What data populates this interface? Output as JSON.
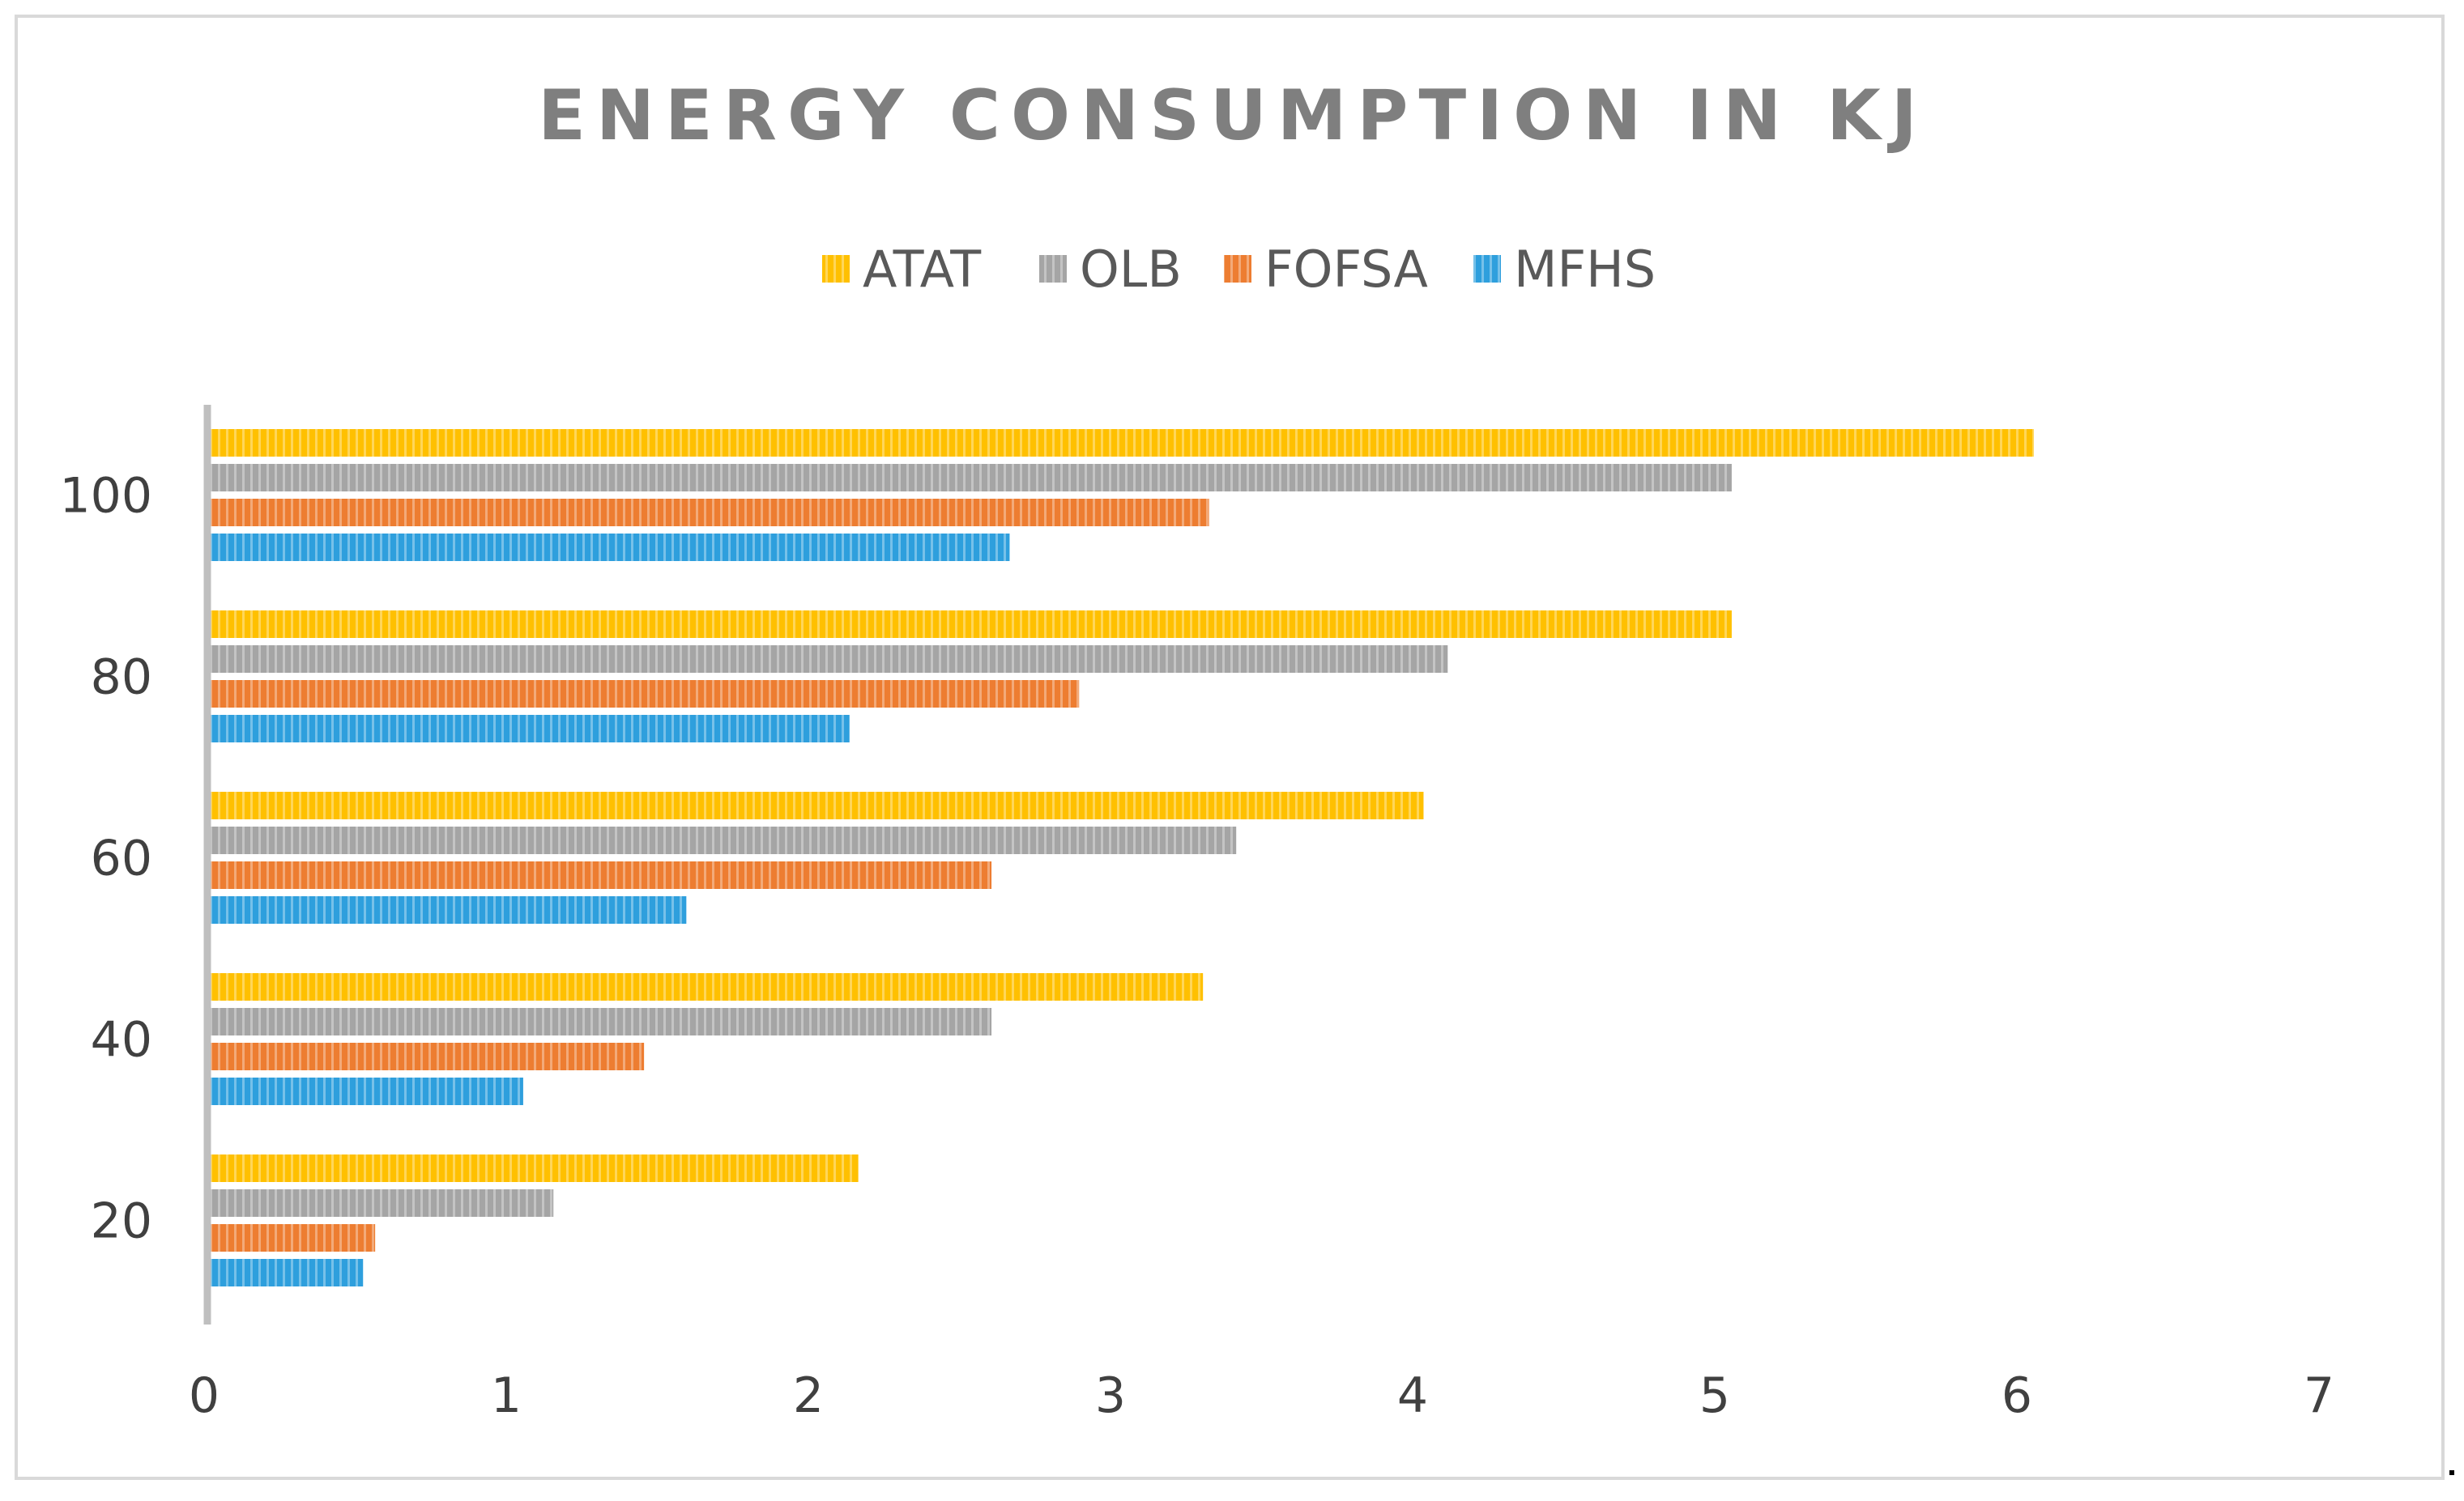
{
  "chart_data": {
    "type": "bar",
    "orientation": "horizontal",
    "title": "ENERGY CONSUMPTION IN KJ",
    "xlabel": "",
    "ylabel": "",
    "categories": [
      "20",
      "40",
      "60",
      "80",
      "100"
    ],
    "xlim": [
      0,
      7
    ],
    "x_ticks": [
      "0",
      "1",
      "2",
      "3",
      "4",
      "5",
      "6",
      "7"
    ],
    "grid": false,
    "legend_position": "top",
    "series": [
      {
        "name": "ATAT",
        "color": "#ffc000",
        "values": [
          2.15,
          3.29,
          4.02,
          5.04,
          6.04
        ]
      },
      {
        "name": "OLB",
        "color": "#a5a5a5",
        "values": [
          1.14,
          2.59,
          3.4,
          4.1,
          5.04
        ]
      },
      {
        "name": "FOFSA",
        "color": "#ed7d31",
        "values": [
          0.55,
          1.44,
          2.59,
          2.88,
          3.31
        ]
      },
      {
        "name": "MFHS",
        "color": "#2e9fdd",
        "values": [
          0.51,
          1.04,
          1.58,
          2.12,
          2.65
        ]
      }
    ]
  }
}
